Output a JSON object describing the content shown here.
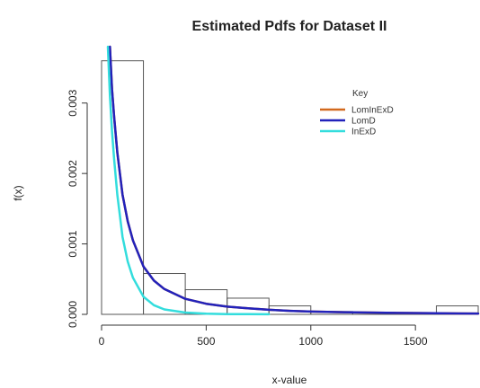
{
  "chart_data": {
    "type": "histogram-with-density-lines",
    "title": "Estimated Pdfs for Dataset II",
    "xlabel": "x-value",
    "ylabel": "f(x)",
    "xlim": [
      0,
      1800
    ],
    "ylim": [
      0,
      0.0038
    ],
    "x_ticks": [
      0,
      500,
      1000,
      1500
    ],
    "y_ticks": [
      0.0,
      0.001,
      0.002,
      0.003
    ],
    "y_tick_labels": [
      "0.000",
      "0.001",
      "0.002",
      "0.003"
    ],
    "histogram": {
      "bin_width": 200,
      "bins": [
        {
          "from": 0,
          "to": 200,
          "density": 0.0036
        },
        {
          "from": 200,
          "to": 400,
          "density": 0.00058
        },
        {
          "from": 400,
          "to": 600,
          "density": 0.00035
        },
        {
          "from": 600,
          "to": 800,
          "density": 0.00023
        },
        {
          "from": 800,
          "to": 1000,
          "density": 0.00012
        },
        {
          "from": 1000,
          "to": 1200,
          "density": 4e-05
        },
        {
          "from": 1200,
          "to": 1400,
          "density": 3e-05
        },
        {
          "from": 1400,
          "to": 1600,
          "density": 2e-05
        },
        {
          "from": 1600,
          "to": 1800,
          "density": 0.00012
        }
      ]
    },
    "legend": {
      "title": "Key",
      "position": "top-right"
    },
    "series": [
      {
        "name": "LomInExD",
        "color": "#d2691e",
        "x": [
          40,
          50,
          60,
          75,
          100,
          125,
          150,
          200,
          250,
          300,
          400,
          500,
          600,
          700,
          800,
          900,
          1000,
          1200,
          1400,
          1600,
          1800
        ],
        "y": [
          0.0038,
          0.0032,
          0.0028,
          0.0023,
          0.0017,
          0.00132,
          0.00105,
          0.00068,
          0.00048,
          0.00036,
          0.00022,
          0.00015,
          0.00011,
          8.5e-05,
          6.5e-05,
          5e-05,
          4e-05,
          2.8e-05,
          2e-05,
          1.5e-05,
          1.2e-05
        ]
      },
      {
        "name": "LomD",
        "color": "#2222bb",
        "x": [
          40,
          50,
          60,
          75,
          100,
          125,
          150,
          200,
          250,
          300,
          400,
          500,
          600,
          700,
          800,
          900,
          1000,
          1200,
          1400,
          1600,
          1800
        ],
        "y": [
          0.0038,
          0.0032,
          0.0028,
          0.0023,
          0.0017,
          0.00132,
          0.00105,
          0.00068,
          0.00048,
          0.00036,
          0.00022,
          0.00015,
          0.00011,
          8.5e-05,
          6.5e-05,
          5e-05,
          4e-05,
          2.8e-05,
          2e-05,
          1.5e-05,
          1.2e-05
        ]
      },
      {
        "name": "InExD",
        "color": "#33dddd",
        "x": [
          30,
          40,
          50,
          60,
          75,
          100,
          125,
          150,
          200,
          250,
          300,
          400,
          500,
          600,
          700,
          800
        ],
        "y": [
          0.0038,
          0.0031,
          0.0026,
          0.0022,
          0.0017,
          0.0011,
          0.00075,
          0.00052,
          0.00025,
          0.00013,
          7e-05,
          2.5e-05,
          1e-05,
          4e-06,
          2e-06,
          1e-06
        ]
      }
    ]
  }
}
